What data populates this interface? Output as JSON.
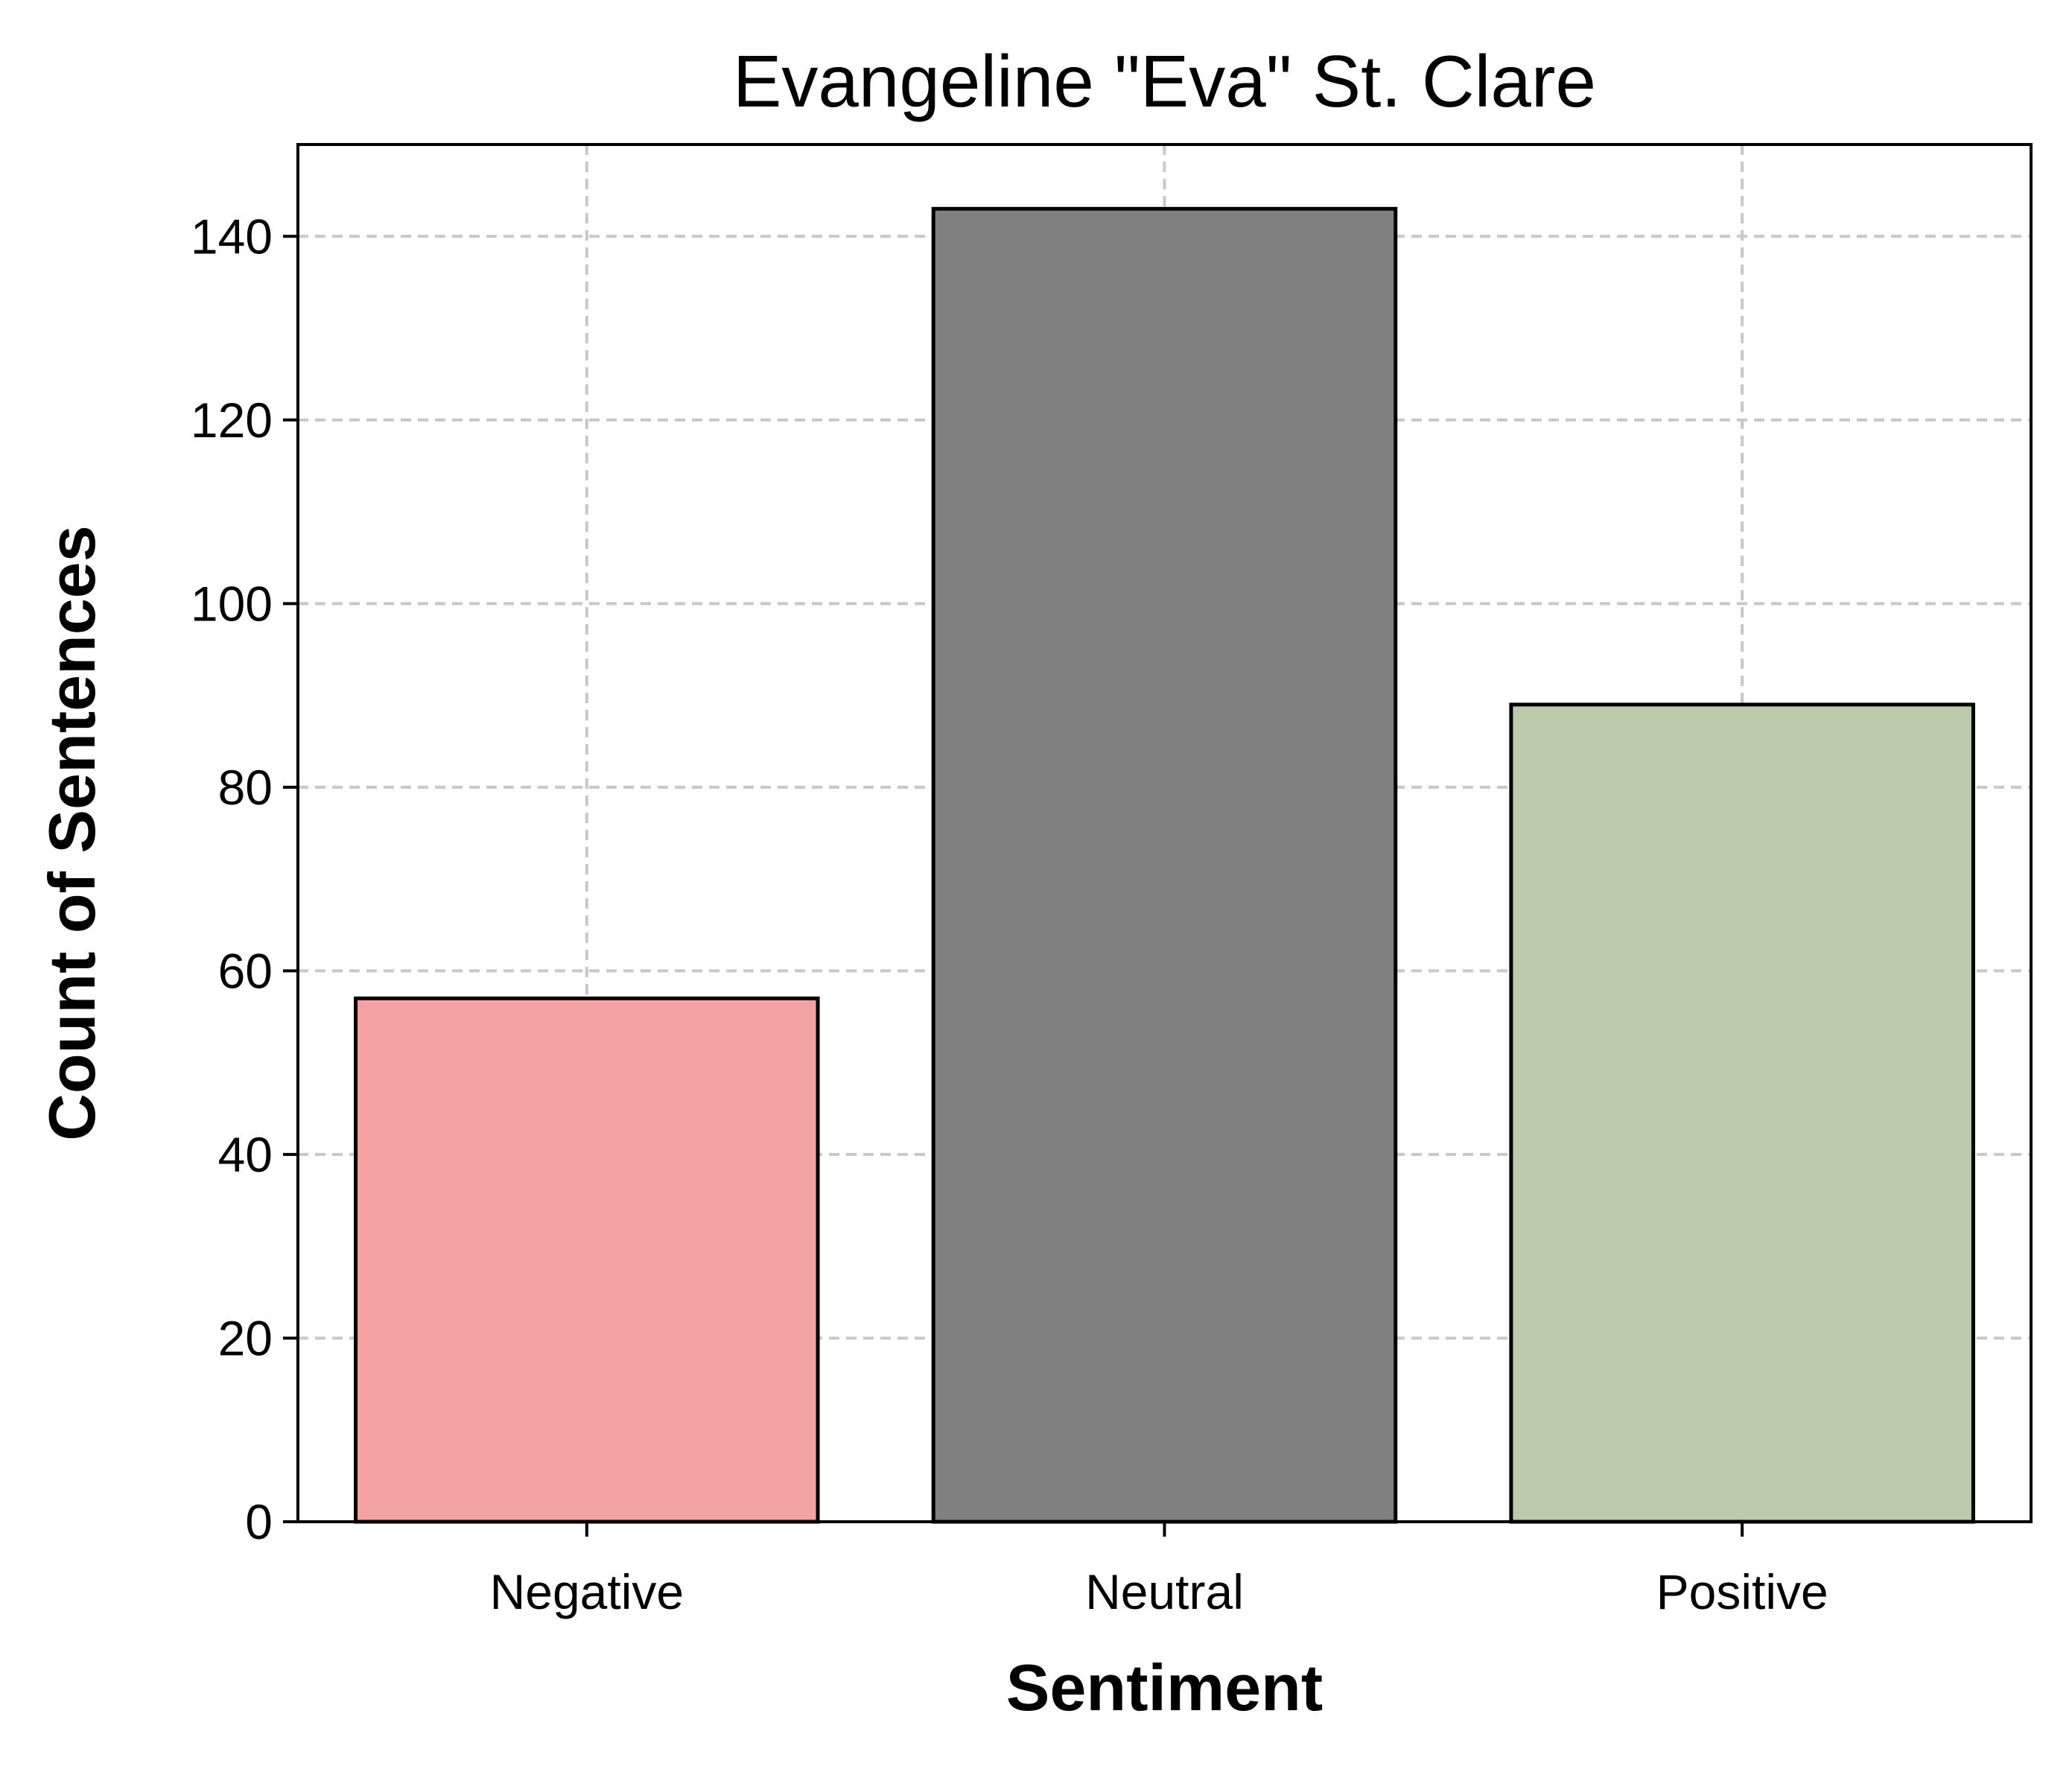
{
  "chart_data": {
    "type": "bar",
    "title": "Evangeline \"Eva\" St. Clare",
    "xlabel": "Sentiment",
    "ylabel": "Count of Sentences",
    "categories": [
      "Negative",
      "Neutral",
      "Positive"
    ],
    "values": [
      57,
      143,
      89
    ],
    "colors": [
      "#f4a2a1",
      "#808080",
      "#bacbab"
    ],
    "edge_color": "#000000",
    "ylim": [
      0,
      150
    ],
    "yticks": [
      0,
      20,
      40,
      60,
      80,
      100,
      120,
      140
    ],
    "grid": true,
    "grid_style": "dashed",
    "legend": "none"
  }
}
